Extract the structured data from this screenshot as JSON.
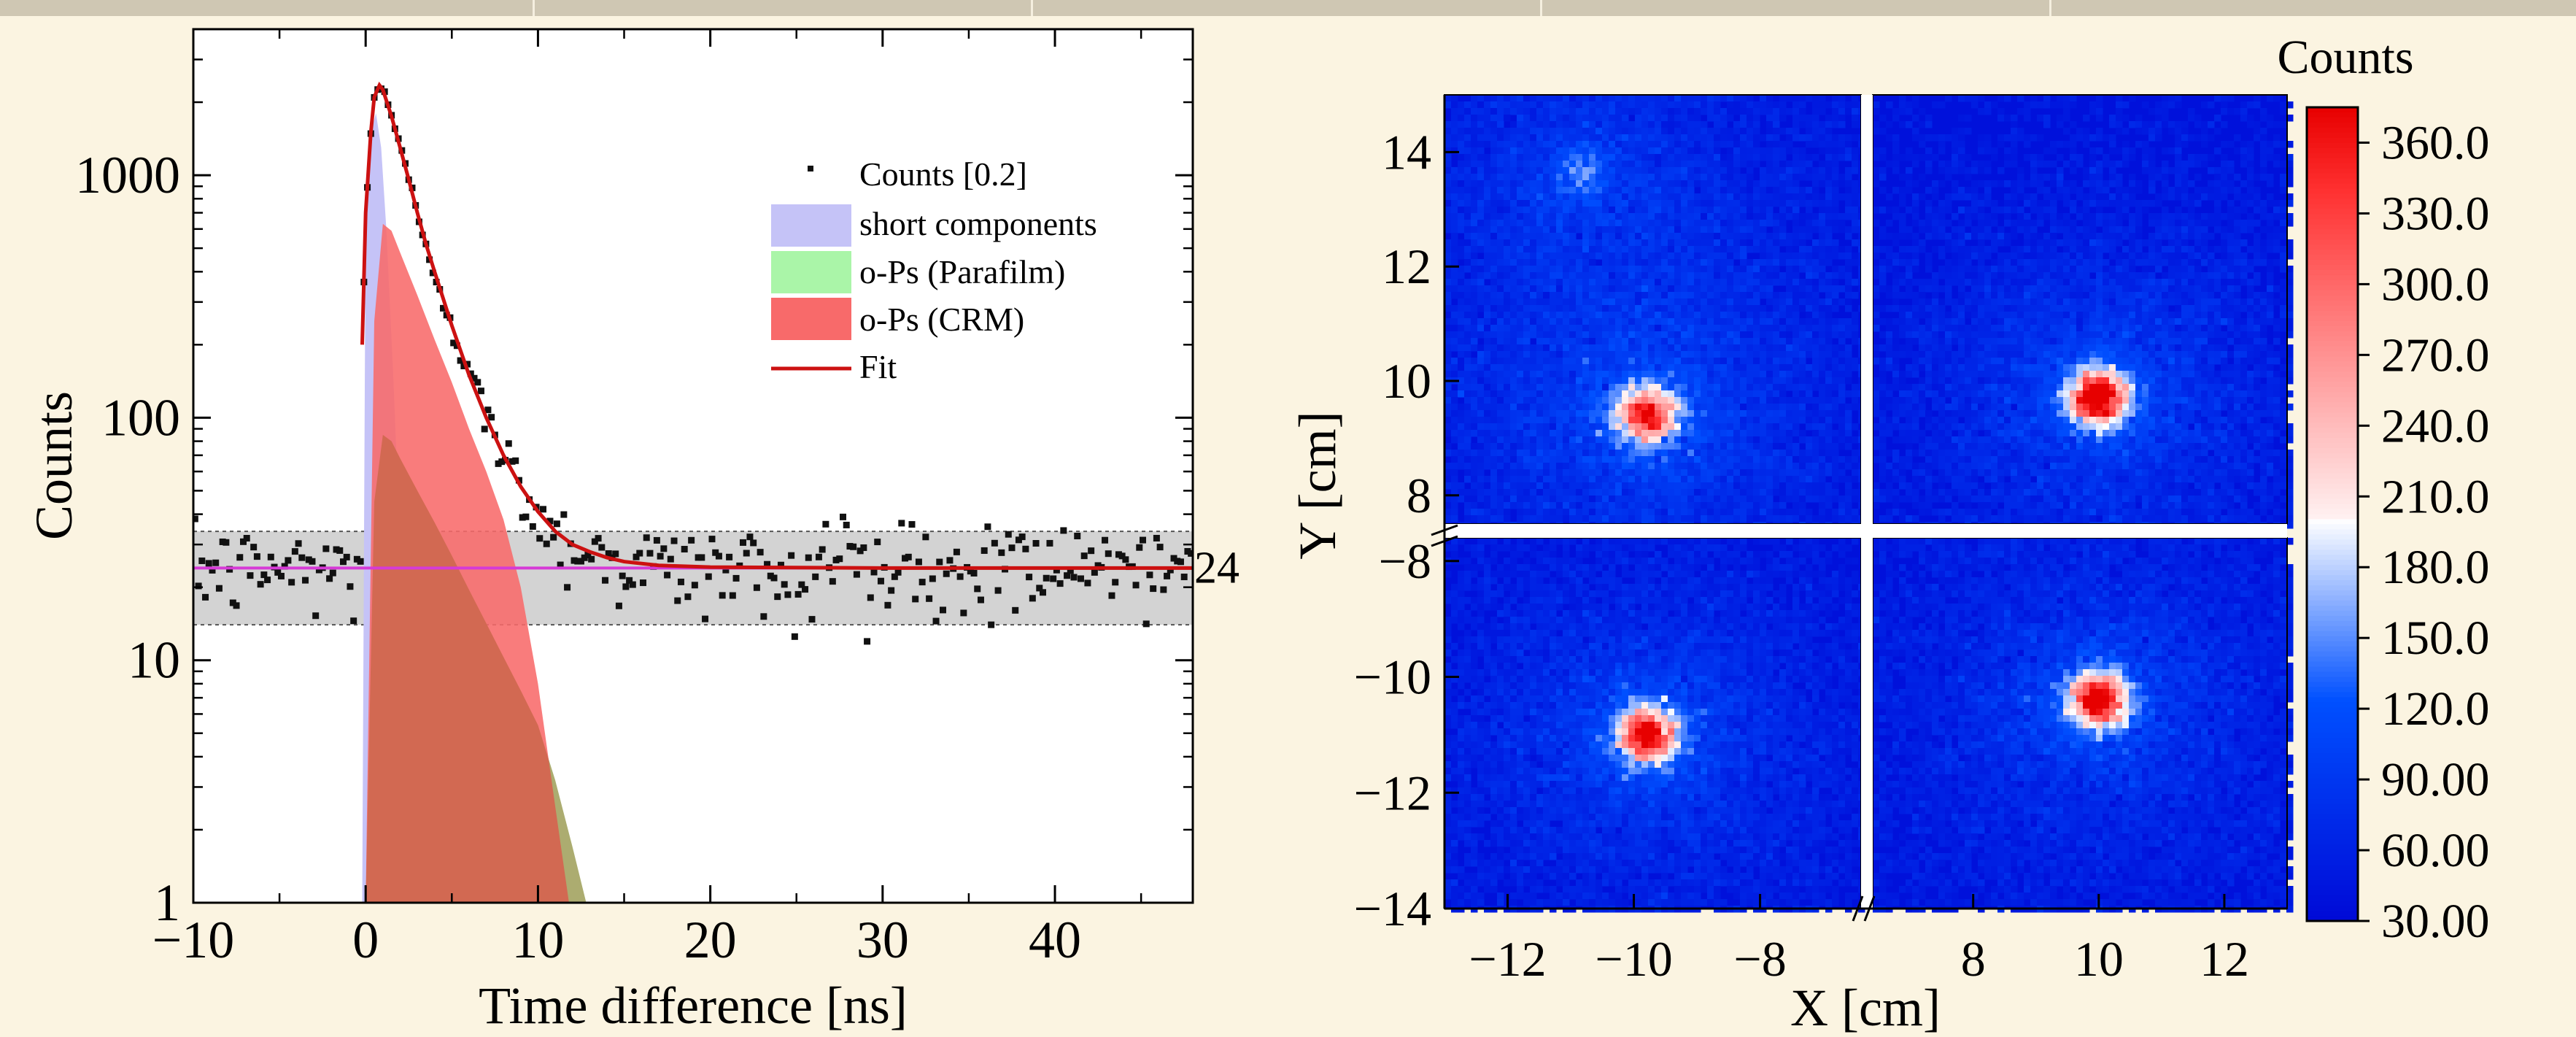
{
  "chart_data": [
    {
      "type": "scatter",
      "title": "",
      "xlabel": "Time difference [ns]",
      "ylabel": "Counts",
      "xlim": [
        -10,
        48
      ],
      "ylim": [
        1,
        4000
      ],
      "yscale": "log",
      "x_ticks": [
        -10,
        0,
        10,
        20,
        30,
        40
      ],
      "x_tick_labels": [
        "−10",
        "0",
        "10",
        "20",
        "30",
        "40"
      ],
      "y_ticks": [
        1,
        10,
        100,
        1000
      ],
      "y_tick_labels": [
        "1",
        "10",
        "100",
        "1000"
      ],
      "legend_position": "top-right",
      "legend": {
        "counts": "Counts [0.2]",
        "short": "short components",
        "parafilm": "o-Ps (Parafilm)",
        "crm": "o-Ps (CRM)",
        "fit": "Fit"
      },
      "background_level": 24,
      "background_label": "24",
      "background_band": [
        14,
        34
      ],
      "colors": {
        "short": "#c5c3f7",
        "parafilm": "#aaf5a8",
        "crm": "#f86a6a",
        "fit": "#cc1111",
        "background_line": "#d63ad6",
        "band": "#d3d3d3",
        "points": "#111111"
      },
      "series": [
        {
          "name": "Fit",
          "x": [
            -0.2,
            0,
            0.3,
            0.5,
            0.8,
            1.0,
            1.5,
            2,
            2.5,
            3,
            3.5,
            4,
            5,
            6,
            7,
            8,
            9,
            10,
            11,
            12,
            13,
            14,
            15,
            17,
            20,
            25,
            30,
            40,
            48
          ],
          "y": [
            200,
            700,
            1500,
            2100,
            2350,
            2250,
            1750,
            1300,
            960,
            700,
            520,
            400,
            240,
            150,
            100,
            70,
            52,
            41,
            34,
            30,
            28,
            26.5,
            25.5,
            24.6,
            24.2,
            24.1,
            24,
            24,
            24
          ]
        },
        {
          "name": "short components",
          "x": [
            -0.2,
            0,
            0.3,
            0.6,
            0.9,
            1.2,
            1.6,
            2.0,
            2.5,
            3.0,
            3.5
          ],
          "y": [
            1,
            700,
            1500,
            1800,
            1300,
            600,
            150,
            30,
            4,
            1.3,
            1
          ]
        },
        {
          "name": "o-Ps (CRM)",
          "x": [
            0,
            0.5,
            1.0,
            1.5,
            2,
            3,
            4,
            5,
            6,
            7,
            8,
            9,
            10,
            11,
            11.8
          ],
          "y": [
            1,
            250,
            630,
            590,
            480,
            320,
            210,
            140,
            90,
            60,
            38,
            20,
            8,
            2.5,
            1
          ]
        },
        {
          "name": "o-Ps (Parafilm)",
          "x": [
            0,
            0.5,
            1.0,
            1.5,
            2,
            3,
            4,
            5,
            6,
            7,
            8,
            9,
            10,
            11,
            12,
            12.8
          ],
          "y": [
            1,
            45,
            85,
            80,
            68,
            50,
            37,
            27,
            19.5,
            14.2,
            10.3,
            7.5,
            5.4,
            3.2,
            1.7,
            1
          ]
        }
      ]
    },
    {
      "type": "heatmap",
      "title": "",
      "xlabel": "X [cm]",
      "ylabel": "Y [cm]",
      "colorbar_label": "Counts",
      "colorbar_range": [
        30,
        375
      ],
      "colorbar_ticks": [
        30,
        60,
        90,
        120,
        150,
        180,
        210,
        240,
        270,
        300,
        330,
        360
      ],
      "colorbar_tick_labels": [
        "30.00",
        "60.00",
        "90.00",
        "120.0",
        "150.0",
        "180.0",
        "210.0",
        "240.0",
        "270.0",
        "300.0",
        "330.0",
        "360.0"
      ],
      "x_tick_labels": [
        "−12",
        "−10",
        "−8",
        "8",
        "10",
        "12"
      ],
      "y_tick_labels": [
        "14",
        "12",
        "10",
        "8",
        "−8",
        "−10",
        "−12",
        "−14"
      ],
      "panels": [
        {
          "name": "top-left",
          "x_range": [
            -13,
            -6.4
          ],
          "y_range": [
            7.5,
            15
          ],
          "hotspots": [
            {
              "x": -9.8,
              "y": 9.4,
              "peak": 290
            },
            {
              "x": -10.8,
              "y": 13.6,
              "peak": 75
            }
          ]
        },
        {
          "name": "top-right",
          "x_range": [
            6.4,
            13
          ],
          "y_range": [
            7.5,
            15
          ],
          "hotspots": [
            {
              "x": 10.0,
              "y": 9.7,
              "peak": 360
            }
          ]
        },
        {
          "name": "bottom-left",
          "x_range": [
            -13,
            -6.4
          ],
          "y_range": [
            -14,
            -7.6
          ],
          "hotspots": [
            {
              "x": -9.8,
              "y": -11.0,
              "peak": 330
            }
          ]
        },
        {
          "name": "bottom-right",
          "x_range": [
            6.4,
            13
          ],
          "y_range": [
            -14,
            -7.6
          ],
          "hotspots": [
            {
              "x": 10.0,
              "y": -10.4,
              "peak": 330
            }
          ]
        }
      ]
    }
  ]
}
